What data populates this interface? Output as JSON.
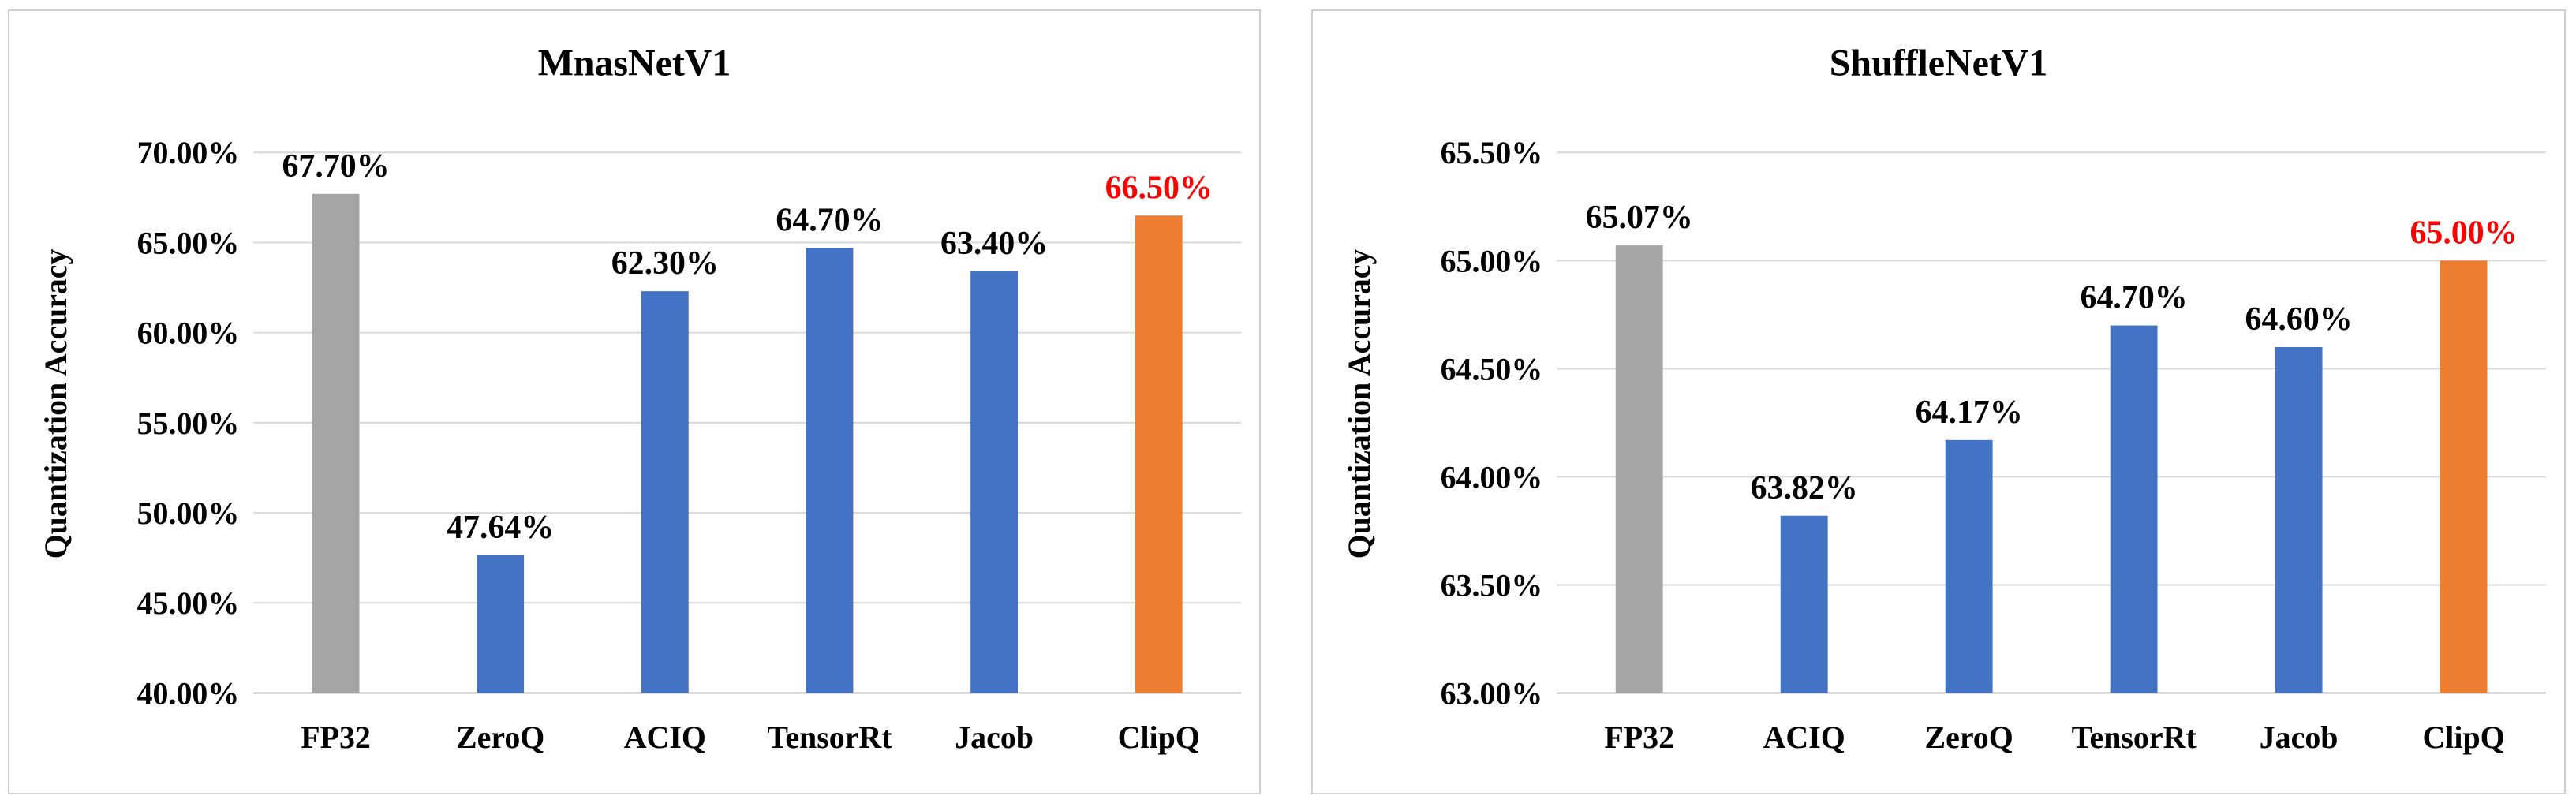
{
  "chart_data": [
    {
      "type": "bar",
      "title": "MnasNetV1",
      "xlabel": "",
      "ylabel": "Quantization   Accuracy",
      "ylim": [
        40,
        70
      ],
      "y_ticks": [
        "40.00%",
        "45.00%",
        "50.00%",
        "55.00%",
        "60.00%",
        "65.00%",
        "70.00%"
      ],
      "y_tick_values": [
        40,
        45,
        50,
        55,
        60,
        65,
        70
      ],
      "categories": [
        "FP32",
        "ZeroQ",
        "ACIQ",
        "TensorRt",
        "Jacob",
        "ClipQ"
      ],
      "values": [
        67.7,
        47.64,
        62.3,
        64.7,
        63.4,
        66.5
      ],
      "data_labels": [
        "67.70%",
        "47.64%",
        "62.30%",
        "64.70%",
        "63.40%",
        "66.50%"
      ],
      "bar_colors": [
        "#a5a5a5",
        "#4472c4",
        "#4472c4",
        "#4472c4",
        "#4472c4",
        "#ed7d31"
      ],
      "label_colors": [
        "#000000",
        "#000000",
        "#000000",
        "#000000",
        "#000000",
        "#ff0000"
      ],
      "grid": true,
      "legend": "none"
    },
    {
      "type": "bar",
      "title": "ShuffleNetV1",
      "xlabel": "",
      "ylabel": "Quantization   Accuracy",
      "ylim": [
        63,
        65.5
      ],
      "y_ticks": [
        "63.00%",
        "63.50%",
        "64.00%",
        "64.50%",
        "65.00%",
        "65.50%"
      ],
      "y_tick_values": [
        63,
        63.5,
        64,
        64.5,
        65,
        65.5
      ],
      "categories": [
        "FP32",
        "ACIQ",
        "ZeroQ",
        "TensorRt",
        "Jacob",
        "ClipQ"
      ],
      "values": [
        65.07,
        63.82,
        64.17,
        64.7,
        64.6,
        65.0
      ],
      "data_labels": [
        "65.07%",
        "63.82%",
        "64.17%",
        "64.70%",
        "64.60%",
        "65.00%"
      ],
      "bar_colors": [
        "#a5a5a5",
        "#4472c4",
        "#4472c4",
        "#4472c4",
        "#4472c4",
        "#ed7d31"
      ],
      "label_colors": [
        "#000000",
        "#000000",
        "#000000",
        "#000000",
        "#000000",
        "#ff0000"
      ],
      "grid": true,
      "legend": "none"
    }
  ]
}
